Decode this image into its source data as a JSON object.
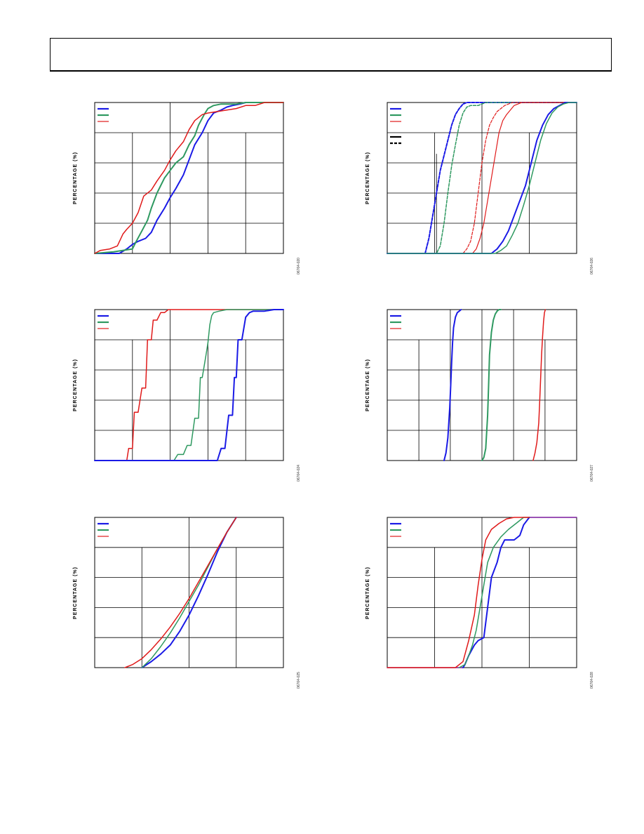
{
  "colors": {
    "blue": "#1a1ae6",
    "green": "#2e9960",
    "red": "#e01a1a",
    "purple": "#7a1a9e"
  },
  "chart_data": [
    {
      "type": "line",
      "ylabel": "PERCENTAGE (%)",
      "figure_id": "06764-020",
      "xlim": [
        0,
        100
      ],
      "ylim": [
        0,
        100
      ],
      "grid": true,
      "legend": {
        "placement": "top-left",
        "entries": [
          "blue",
          "green",
          "red"
        ]
      },
      "series": [
        {
          "color": "blue",
          "dash": false,
          "width": 2.0,
          "x": [
            0,
            13,
            17,
            20,
            23,
            27,
            30,
            33,
            37,
            40,
            43,
            47,
            50,
            53,
            57,
            60,
            63,
            67,
            70,
            73,
            77,
            80,
            83,
            86,
            90,
            100
          ],
          "y": [
            0,
            0,
            3,
            6,
            8,
            10,
            14,
            22,
            30,
            37,
            43,
            52,
            62,
            72,
            80,
            88,
            93,
            95,
            97,
            98,
            99,
            100,
            100,
            100,
            100,
            100
          ]
        },
        {
          "color": "green",
          "dash": false,
          "width": 2.0,
          "x": [
            0,
            10,
            20,
            22,
            25,
            28,
            30,
            33,
            37,
            40,
            43,
            47,
            50,
            53,
            55,
            58,
            60,
            63,
            67,
            70,
            75,
            80,
            85,
            90,
            100
          ],
          "y": [
            0,
            1,
            3,
            8,
            15,
            22,
            30,
            40,
            50,
            55,
            60,
            64,
            72,
            78,
            85,
            92,
            96,
            98,
            99,
            99,
            99,
            100,
            100,
            100,
            100
          ]
        },
        {
          "color": "red",
          "dash": false,
          "width": 1.5,
          "x": [
            0,
            3,
            8,
            12,
            15,
            17,
            20,
            23,
            26,
            30,
            33,
            37,
            40,
            43,
            47,
            50,
            53,
            57,
            60,
            65,
            70,
            75,
            80,
            85,
            90,
            100
          ],
          "y": [
            0,
            2,
            3,
            5,
            13,
            16,
            20,
            27,
            38,
            42,
            48,
            55,
            62,
            68,
            74,
            82,
            88,
            92,
            93,
            94,
            95,
            96,
            98,
            98,
            100,
            100
          ]
        }
      ]
    },
    {
      "type": "line",
      "ylabel": "PERCENTAGE (%)",
      "figure_id": "06764-026",
      "xlim": [
        0,
        100
      ],
      "ylim": [
        0,
        100
      ],
      "grid": true,
      "legend": {
        "placement": "top-left",
        "entries": [
          "blue",
          "green",
          "red",
          "black-solid",
          "black-dashed"
        ]
      },
      "series": [
        {
          "color": "blue",
          "dash": true,
          "width": 2.0,
          "x": [
            0,
            20,
            22,
            24,
            26,
            28,
            30,
            32,
            34,
            36,
            38,
            40,
            42,
            44,
            46,
            100
          ],
          "y": [
            0,
            0,
            10,
            25,
            40,
            55,
            65,
            75,
            85,
            92,
            96,
            99,
            100,
            100,
            100,
            100
          ]
        },
        {
          "color": "green",
          "dash": true,
          "width": 1.5,
          "x": [
            0,
            26,
            28,
            30,
            32,
            34,
            36,
            38,
            40,
            42,
            44,
            48,
            52,
            100
          ],
          "y": [
            0,
            0,
            5,
            20,
            40,
            58,
            72,
            85,
            93,
            97,
            98,
            98,
            100,
            100
          ]
        },
        {
          "color": "red",
          "dash": true,
          "width": 1.2,
          "x": [
            0,
            40,
            42,
            44,
            46,
            48,
            50,
            52,
            54,
            56,
            58,
            60,
            62,
            64,
            66,
            100
          ],
          "y": [
            0,
            0,
            3,
            8,
            20,
            40,
            60,
            75,
            85,
            90,
            94,
            96,
            98,
            99,
            100,
            100
          ]
        },
        {
          "color": "red",
          "dash": false,
          "width": 1.2,
          "x": [
            0,
            45,
            47,
            49,
            51,
            53,
            55,
            57,
            59,
            61,
            63,
            65,
            67,
            69,
            71,
            100
          ],
          "y": [
            0,
            0,
            3,
            10,
            20,
            35,
            50,
            65,
            80,
            88,
            92,
            95,
            98,
            99,
            100,
            100
          ]
        },
        {
          "color": "blue",
          "dash": false,
          "width": 2.0,
          "x": [
            0,
            55,
            58,
            61,
            64,
            67,
            70,
            73,
            76,
            79,
            82,
            85,
            88,
            91,
            94,
            100
          ],
          "y": [
            0,
            0,
            3,
            8,
            15,
            25,
            35,
            45,
            60,
            75,
            85,
            92,
            96,
            98,
            100,
            100
          ]
        },
        {
          "color": "green",
          "dash": false,
          "width": 1.5,
          "x": [
            0,
            57,
            60,
            63,
            66,
            69,
            72,
            75,
            78,
            81,
            84,
            87,
            90,
            93,
            96,
            100
          ],
          "y": [
            0,
            0,
            2,
            5,
            12,
            20,
            32,
            45,
            60,
            75,
            86,
            93,
            97,
            99,
            100,
            100
          ]
        }
      ]
    },
    {
      "type": "line",
      "ylabel": "PERCENTAGE (%)",
      "figure_id": "06764-024",
      "xlim": [
        0,
        100
      ],
      "ylim": [
        0,
        100
      ],
      "grid": true,
      "legend": {
        "placement": "top-left",
        "entries": [
          "blue",
          "green",
          "red"
        ]
      },
      "series": [
        {
          "color": "red",
          "dash": false,
          "width": 1.5,
          "x": [
            0,
            17,
            18,
            20,
            21,
            23,
            25,
            27,
            28,
            30,
            31,
            33,
            35,
            37,
            39,
            41,
            100
          ],
          "y": [
            0,
            0,
            8,
            8,
            32,
            32,
            48,
            48,
            80,
            80,
            93,
            93,
            98,
            98,
            100,
            100,
            100
          ]
        },
        {
          "color": "green",
          "dash": false,
          "width": 1.5,
          "x": [
            0,
            42,
            44,
            47,
            49,
            51,
            53,
            55,
            56,
            57,
            59,
            60,
            61,
            62,
            63,
            66,
            70,
            75,
            100
          ],
          "y": [
            0,
            0,
            4,
            4,
            10,
            10,
            28,
            28,
            55,
            55,
            70,
            78,
            90,
            96,
            98,
            99,
            100,
            100,
            100
          ]
        },
        {
          "color": "blue",
          "dash": false,
          "width": 2.0,
          "x": [
            0,
            65,
            67,
            69,
            71,
            73,
            74,
            75,
            76,
            78,
            80,
            82,
            84,
            90,
            95,
            100
          ],
          "y": [
            0,
            0,
            8,
            8,
            30,
            30,
            55,
            55,
            80,
            80,
            95,
            98,
            99,
            99,
            100,
            100
          ]
        }
      ]
    },
    {
      "type": "line",
      "ylabel": "PERCENTAGE (%)",
      "figure_id": "06764-027",
      "xlim": [
        0,
        100
      ],
      "ylim": [
        0,
        100
      ],
      "grid": true,
      "legend": {
        "placement": "top-left",
        "entries": [
          "blue",
          "green",
          "red"
        ]
      },
      "series": [
        {
          "color": "blue",
          "dash": false,
          "width": 2.0,
          "x": [
            30,
            31,
            32,
            33,
            33.5,
            34,
            34.5,
            35,
            36,
            37,
            38,
            39
          ],
          "y": [
            0,
            5,
            15,
            35,
            50,
            65,
            78,
            88,
            95,
            98,
            99,
            100
          ]
        },
        {
          "color": "green",
          "dash": false,
          "width": 2.0,
          "x": [
            50,
            51,
            52,
            53,
            53.5,
            54,
            55,
            56,
            57,
            58,
            59,
            60
          ],
          "y": [
            0,
            2,
            8,
            30,
            50,
            70,
            85,
            93,
            97,
            99,
            100,
            100
          ]
        },
        {
          "color": "red",
          "dash": false,
          "width": 1.5,
          "x": [
            77,
            78,
            79,
            80,
            80.5,
            81,
            81.5,
            82,
            82.5,
            83,
            83.5
          ],
          "y": [
            0,
            5,
            12,
            25,
            40,
            55,
            70,
            82,
            92,
            98,
            100
          ]
        }
      ]
    },
    {
      "type": "line",
      "ylabel": "PERCENTAGE (%)",
      "figure_id": "06764-025",
      "xlim": [
        0,
        100
      ],
      "ylim": [
        0,
        100
      ],
      "grid": true,
      "legend": {
        "placement": "top-left",
        "entries": [
          "blue",
          "green",
          "red"
        ]
      },
      "series": [
        {
          "color": "blue",
          "dash": false,
          "width": 2.0,
          "x": [
            25,
            30,
            35,
            40,
            45,
            50,
            55,
            60,
            65,
            70,
            75
          ],
          "y": [
            0,
            4,
            9,
            15,
            24,
            35,
            48,
            62,
            77,
            90,
            100
          ]
        },
        {
          "color": "green",
          "dash": false,
          "width": 1.5,
          "x": [
            25,
            30,
            35,
            40,
            45,
            50,
            55,
            60,
            65,
            70,
            75
          ],
          "y": [
            0,
            6,
            14,
            23,
            33,
            44,
            55,
            67,
            79,
            90,
            100
          ]
        },
        {
          "color": "red",
          "dash": false,
          "width": 1.5,
          "x": [
            16,
            20,
            25,
            30,
            35,
            40,
            45,
            50,
            55,
            60,
            65,
            70,
            75
          ],
          "y": [
            0,
            2,
            6,
            12,
            19,
            27,
            36,
            46,
            57,
            68,
            79,
            90,
            100
          ]
        }
      ]
    },
    {
      "type": "line",
      "ylabel": "PERCENTAGE (%)",
      "figure_id": "06764-028",
      "xlim": [
        0,
        100
      ],
      "ylim": [
        0,
        100
      ],
      "grid": true,
      "legend": {
        "placement": "top-left",
        "entries": [
          "blue",
          "green",
          "red"
        ]
      },
      "series": [
        {
          "color": "purple",
          "dash": false,
          "width": 1.5,
          "x": [
            0,
            40
          ],
          "y": [
            0,
            0
          ]
        },
        {
          "color": "purple",
          "dash": false,
          "width": 1.5,
          "x": [
            75,
            100
          ],
          "y": [
            100,
            100
          ]
        },
        {
          "color": "blue",
          "dash": false,
          "width": 2.0,
          "x": [
            40,
            41,
            43,
            46,
            48,
            51,
            53,
            55,
            58,
            60,
            62,
            65,
            67,
            70,
            72,
            75
          ],
          "y": [
            0,
            2,
            8,
            15,
            18,
            20,
            40,
            60,
            70,
            80,
            85,
            85,
            85,
            88,
            95,
            100
          ]
        },
        {
          "color": "green",
          "dash": false,
          "width": 1.5,
          "x": [
            38,
            41,
            43,
            45,
            47,
            49,
            51,
            53,
            56,
            60,
            64,
            68,
            72,
            75
          ],
          "y": [
            0,
            2,
            8,
            15,
            25,
            40,
            55,
            70,
            80,
            87,
            92,
            96,
            100,
            100
          ]
        },
        {
          "color": "red",
          "dash": false,
          "width": 1.5,
          "x": [
            0,
            36,
            40,
            43,
            46,
            48,
            50,
            52,
            55,
            59,
            63,
            67,
            70,
            75
          ],
          "y": [
            0,
            0,
            4,
            18,
            35,
            55,
            72,
            85,
            92,
            96,
            99,
            100,
            100,
            100
          ]
        }
      ]
    }
  ]
}
